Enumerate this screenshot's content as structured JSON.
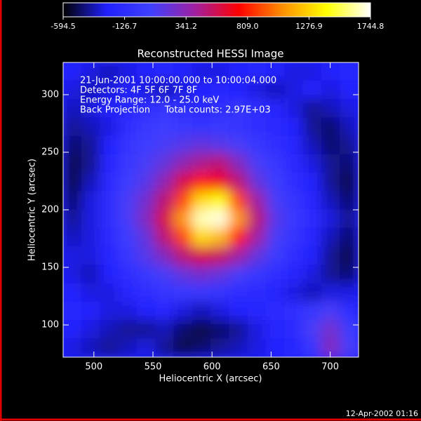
{
  "chart_data": {
    "type": "heatmap",
    "title": "Reconstructed HESSI Image",
    "xlabel": "Heliocentric X (arcsec)",
    "ylabel": "Heliocentric Y (arcsec)",
    "annotations": [
      "21-Jun-2001 10:00:00.000 to 10:00:04.000",
      "Detectors: 4F 5F 6F 7F 8F",
      "Energy Range: 12.0 - 25.0 keV",
      "Back Projection     Total counts: 2.97E+03"
    ],
    "footer": "12-Apr-2002 01:16",
    "xlim": [
      474,
      724
    ],
    "ylim": [
      72,
      328
    ],
    "xticks": [
      500,
      550,
      600,
      650,
      700
    ],
    "yticks": [
      100,
      150,
      200,
      250,
      300
    ],
    "colorbar_lim": [
      -594.5,
      1744.8
    ],
    "colorbar_ticks": [
      -594.5,
      -126.7,
      341.2,
      {
        "value": 809,
        "label": "809.0"
      },
      1276.9,
      1744.8
    ],
    "colormap": [
      "#000000",
      "#2020ff",
      "#4040ff",
      "#a020a0",
      "#ff0000",
      "#ff9000",
      "#ffff00",
      "#ffffff"
    ],
    "z": [
      [
        -250,
        -300,
        -350,
        -300,
        -250,
        -200,
        -250,
        -300,
        -300,
        -250,
        -200,
        -250,
        -300,
        -300,
        -250,
        -200
      ],
      [
        -300,
        -350,
        -300,
        -250,
        -300,
        -350,
        -300,
        -250,
        -200,
        -250,
        -300,
        -350,
        -300,
        -250,
        -300,
        -250
      ],
      [
        -350,
        -300,
        -250,
        -200,
        -100,
        -50,
        -100,
        -150,
        -100,
        -50,
        -100,
        -200,
        -300,
        -400,
        -350,
        -300
      ],
      [
        -400,
        -350,
        -300,
        -100,
        0,
        50,
        0,
        -50,
        0,
        -50,
        -100,
        -150,
        -250,
        -400,
        -450,
        -350
      ],
      [
        -450,
        -400,
        -250,
        -50,
        50,
        100,
        150,
        200,
        150,
        100,
        0,
        -100,
        -200,
        -350,
        -450,
        -400
      ],
      [
        -500,
        -400,
        -200,
        0,
        100,
        200,
        350,
        450,
        500,
        300,
        100,
        0,
        -150,
        -300,
        -400,
        -450
      ],
      [
        -500,
        -350,
        -150,
        50,
        150,
        350,
        600,
        800,
        700,
        500,
        200,
        50,
        -100,
        -250,
        -400,
        -500
      ],
      [
        -450,
        -300,
        -100,
        100,
        250,
        500,
        900,
        1300,
        1400,
        900,
        400,
        100,
        -50,
        -200,
        -350,
        -450
      ],
      [
        -400,
        -300,
        -100,
        100,
        300,
        600,
        1100,
        1650,
        1700,
        1100,
        500,
        150,
        0,
        -150,
        -300,
        -400
      ],
      [
        -350,
        -300,
        -150,
        50,
        200,
        500,
        900,
        1300,
        1200,
        800,
        400,
        100,
        -50,
        -200,
        -350,
        -450
      ],
      [
        -300,
        -300,
        -200,
        0,
        150,
        300,
        500,
        600,
        550,
        400,
        200,
        50,
        -100,
        -250,
        -400,
        -500
      ],
      [
        -300,
        -350,
        -250,
        -100,
        0,
        100,
        200,
        250,
        200,
        100,
        0,
        -100,
        -200,
        -300,
        -400,
        -450
      ],
      [
        -250,
        -300,
        -300,
        -200,
        -100,
        -50,
        0,
        0,
        -50,
        -100,
        -150,
        -200,
        -300,
        -350,
        -300,
        -300
      ],
      [
        -200,
        -250,
        -300,
        -300,
        -250,
        -200,
        -300,
        -350,
        -300,
        -250,
        -200,
        -150,
        -100,
        0,
        100,
        -100
      ],
      [
        -250,
        -300,
        -350,
        -400,
        -400,
        -350,
        -450,
        -500,
        -450,
        -400,
        -300,
        -200,
        -150,
        100,
        250,
        50
      ],
      [
        -300,
        -350,
        -400,
        -350,
        -300,
        -400,
        -500,
        -450,
        -400,
        -350,
        -300,
        -250,
        -200,
        0,
        300,
        100
      ]
    ]
  }
}
